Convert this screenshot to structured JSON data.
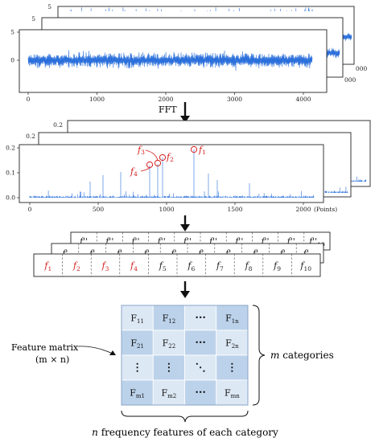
{
  "time_panels": {
    "back_tick_1": "5",
    "back_tick_2": "5",
    "front_y_ticks": [
      "5",
      "0"
    ],
    "x_ticks": [
      "0",
      "1000",
      "2000",
      "3000",
      "4000"
    ],
    "back_x_tick_1": "000",
    "back_x_tick_2": "000"
  },
  "arrow_1_label": "FFT",
  "freq_panels": {
    "back_tick_1": "0.2",
    "back_tick_2": "0.2",
    "front_y_ticks": [
      "0.2",
      "0.1",
      "0.0"
    ],
    "x_ticks": [
      "0",
      "500",
      "1000",
      "1500",
      "2000"
    ],
    "x_unit": "(Points)",
    "peak_labels": [
      {
        "base": "f",
        "sub": "1"
      },
      {
        "base": "f",
        "sub": "2"
      },
      {
        "base": "f",
        "sub": "3"
      },
      {
        "base": "f",
        "sub": "4"
      }
    ]
  },
  "feature_rows": {
    "back_row_cells": [
      "f''",
      "f''",
      "f''",
      "f''",
      "f''",
      "f''",
      "f''",
      "f''",
      "f''",
      "f''"
    ],
    "back_row_last_sub": "10",
    "middle_row_cells": [
      "f'",
      "f'",
      "f'",
      "f'",
      "f'",
      "f'",
      "f'",
      "f'",
      "f'",
      "f'"
    ],
    "middle_row_last_sub": "10",
    "front_row": [
      {
        "base": "f",
        "sub": "1",
        "highlight": true
      },
      {
        "base": "f",
        "sub": "2",
        "highlight": true
      },
      {
        "base": "f",
        "sub": "3",
        "highlight": true
      },
      {
        "base": "f",
        "sub": "4",
        "highlight": true
      },
      {
        "base": "f",
        "sub": "5",
        "highlight": false
      },
      {
        "base": "f",
        "sub": "6",
        "highlight": false
      },
      {
        "base": "f",
        "sub": "7",
        "highlight": false
      },
      {
        "base": "f",
        "sub": "8",
        "highlight": false
      },
      {
        "base": "f",
        "sub": "9",
        "highlight": false
      },
      {
        "base": "f",
        "sub": "10",
        "highlight": false
      }
    ]
  },
  "matrix": {
    "label_line_1": "Feature matrix",
    "label_line_2": "(m × n)",
    "cells": [
      [
        {
          "b": "F",
          "s": "11"
        },
        {
          "b": "F",
          "s": "12"
        },
        {
          "b": "···",
          "s": ""
        },
        {
          "b": "F",
          "s": "1n"
        }
      ],
      [
        {
          "b": "F",
          "s": "21"
        },
        {
          "b": "F",
          "s": "22"
        },
        {
          "b": "···",
          "s": ""
        },
        {
          "b": "F",
          "s": "2n"
        }
      ],
      [
        {
          "b": "⋮",
          "s": ""
        },
        {
          "b": "⋮",
          "s": ""
        },
        {
          "b": "⋱",
          "s": ""
        },
        {
          "b": "⋮",
          "s": ""
        }
      ],
      [
        {
          "b": "F",
          "s": "m1"
        },
        {
          "b": "F",
          "s": "m2"
        },
        {
          "b": "···",
          "s": ""
        },
        {
          "b": "F",
          "s": "mn"
        }
      ]
    ],
    "row_brace_label_var": "m",
    "row_brace_label_text": " categories",
    "col_brace_label_var": "n",
    "col_brace_label_text": " frequency features of each category"
  },
  "colors": {
    "signal": "#2a6fdb",
    "highlight": "#d42020",
    "matrix_light": "#dde8f5",
    "matrix_dark": "#bcd2ea"
  }
}
